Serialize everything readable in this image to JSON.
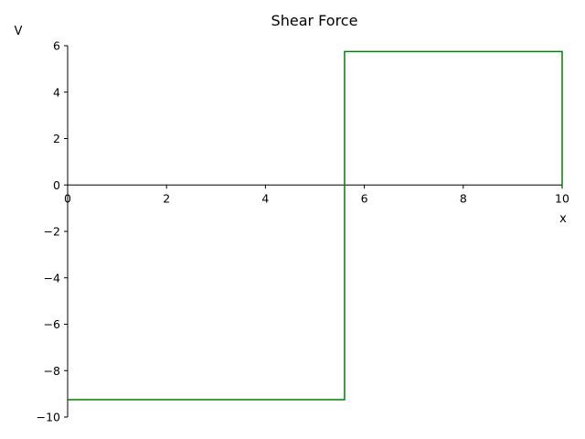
{
  "chart_data": {
    "type": "line",
    "title": "Shear Force",
    "xlabel": "x",
    "ylabel": "V",
    "xlim": [
      0,
      10
    ],
    "ylim": [
      -10,
      6
    ],
    "x_ticks": [
      0,
      2,
      4,
      6,
      8,
      10
    ],
    "x_tick_labels": [
      "0",
      "2",
      "4",
      "6",
      "8",
      "10"
    ],
    "y_ticks": [
      -10,
      -8,
      -6,
      -4,
      -2,
      0,
      2,
      4,
      6
    ],
    "y_tick_labels": [
      "−10",
      "−8",
      "−6",
      "−4",
      "−2",
      "0",
      "2",
      "4",
      "6"
    ],
    "grid": false,
    "zero_line": true,
    "series": [
      {
        "color": "#008000",
        "x": [
          0,
          5.6,
          5.6,
          10,
          10
        ],
        "y": [
          -9.25,
          -9.25,
          5.75,
          5.75,
          0
        ]
      }
    ]
  }
}
